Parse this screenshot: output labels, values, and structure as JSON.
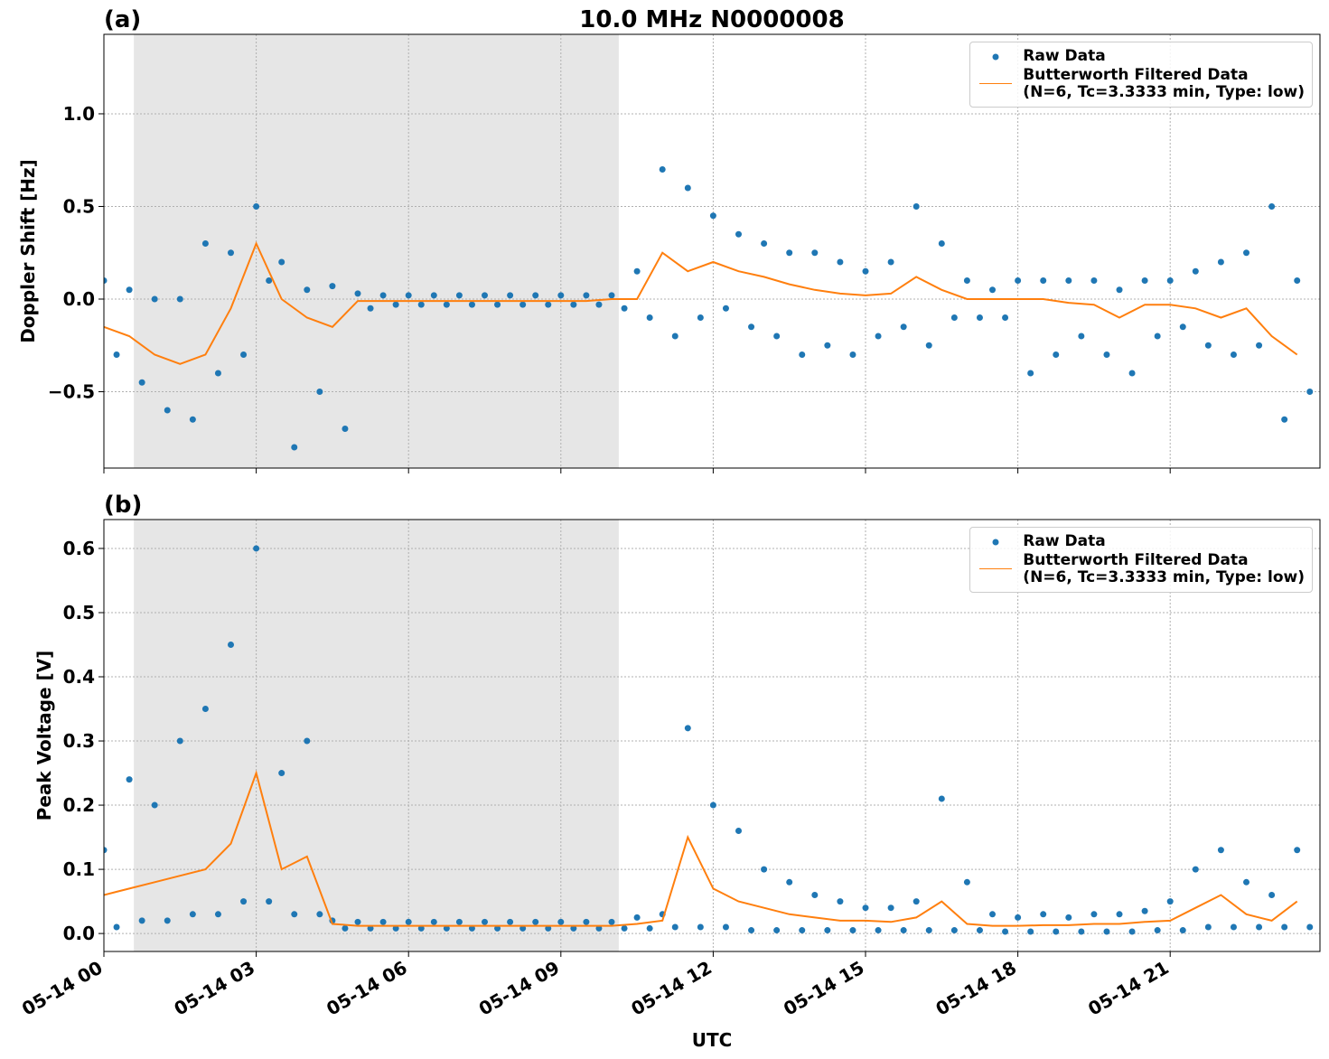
{
  "chart_data": [
    {
      "type": "line",
      "panel_label": "(a)",
      "title": "10.0 MHz N0000008",
      "ylabel": "Doppler Shift [Hz]",
      "ylim": [
        -0.912,
        1.429
      ],
      "yticks": [
        {
          "value": -0.5,
          "label": "−0.5"
        },
        {
          "value": 0,
          "label": "0.0"
        },
        0.5,
        {
          "value": 1,
          "label": "1.0"
        }
      ],
      "grid": true,
      "legend": "upper right",
      "shaded_span": [
        0.59,
        10.14
      ],
      "series": [
        {
          "name": "Raw Data",
          "mode": "markers",
          "color": "#1f77b4",
          "x": [
            0,
            0.25,
            0.5,
            0.75,
            1,
            1.25,
            1.5,
            1.75,
            2,
            2.25,
            2.5,
            2.75,
            3,
            3.25,
            3.5,
            3.75,
            4,
            4.25,
            4.5,
            4.75,
            5,
            5.25,
            5.5,
            5.75,
            6,
            6.25,
            6.5,
            6.75,
            7,
            7.25,
            7.5,
            7.75,
            8,
            8.25,
            8.5,
            8.75,
            9,
            9.25,
            9.5,
            9.75,
            10,
            10.25,
            10.5,
            10.75,
            11,
            11.25,
            11.5,
            11.75,
            12,
            12.25,
            12.5,
            12.75,
            13,
            13.25,
            13.5,
            13.75,
            14,
            14.25,
            14.5,
            14.75,
            15,
            15.25,
            15.5,
            15.75,
            16,
            16.25,
            16.5,
            16.75,
            17,
            17.25,
            17.5,
            17.75,
            18,
            18.25,
            18.5,
            18.75,
            19,
            19.25,
            19.5,
            19.75,
            20,
            20.25,
            20.5,
            20.75,
            21,
            21.25,
            21.5,
            21.75,
            22,
            22.25,
            22.5,
            22.75,
            23,
            23.25,
            23.5,
            23.75
          ],
          "values": [
            0.1,
            -0.3,
            0.05,
            -0.45,
            0.0,
            -0.6,
            0.0,
            -0.65,
            0.3,
            -0.4,
            0.25,
            -0.3,
            0.5,
            0.1,
            0.2,
            -0.8,
            0.05,
            -0.5,
            0.07,
            -0.7,
            0.03,
            -0.05,
            0.02,
            -0.03,
            0.02,
            -0.03,
            0.02,
            -0.03,
            0.02,
            -0.03,
            0.02,
            -0.03,
            0.02,
            -0.03,
            0.02,
            -0.03,
            0.02,
            -0.03,
            0.02,
            -0.03,
            0.02,
            -0.05,
            0.15,
            -0.1,
            0.7,
            -0.2,
            0.6,
            -0.1,
            0.45,
            -0.05,
            0.35,
            -0.15,
            0.3,
            -0.2,
            0.25,
            -0.3,
            0.25,
            -0.25,
            0.2,
            -0.3,
            0.15,
            -0.2,
            0.2,
            -0.15,
            0.5,
            -0.25,
            0.3,
            -0.1,
            0.1,
            -0.1,
            0.05,
            -0.1,
            0.1,
            -0.4,
            0.1,
            -0.3,
            0.1,
            -0.2,
            0.1,
            -0.3,
            0.05,
            -0.4,
            0.1,
            -0.2,
            0.1,
            -0.15,
            0.15,
            -0.25,
            0.2,
            -0.3,
            0.25,
            -0.25,
            0.5,
            -0.65,
            0.1,
            -0.5
          ]
        },
        {
          "name": "Butterworth Filtered Data\n(N=6, Tc=3.3333 min, Type: low)",
          "mode": "line",
          "color": "#ff7f0e",
          "x": [
            0,
            0.5,
            1,
            1.5,
            2,
            2.5,
            3,
            3.5,
            4,
            4.5,
            5,
            5.5,
            6,
            6.5,
            7,
            7.5,
            8,
            8.5,
            9,
            9.5,
            10,
            10.5,
            11,
            11.5,
            12,
            12.5,
            13,
            13.5,
            14,
            14.5,
            15,
            15.5,
            16,
            16.5,
            17,
            17.5,
            18,
            18.5,
            19,
            19.5,
            20,
            20.5,
            21,
            21.5,
            22,
            22.5,
            23,
            23.5
          ],
          "values": [
            -0.15,
            -0.2,
            -0.3,
            -0.35,
            -0.3,
            -0.05,
            0.3,
            0.0,
            -0.1,
            -0.15,
            -0.01,
            -0.01,
            -0.01,
            -0.01,
            -0.01,
            -0.01,
            -0.01,
            -0.01,
            -0.01,
            -0.01,
            0.0,
            0.0,
            0.25,
            0.15,
            0.2,
            0.15,
            0.12,
            0.08,
            0.05,
            0.03,
            0.02,
            0.03,
            0.12,
            0.05,
            0.0,
            0.0,
            0.0,
            0.0,
            -0.02,
            -0.03,
            -0.1,
            -0.03,
            -0.03,
            -0.05,
            -0.1,
            -0.05,
            -0.2,
            -0.3
          ]
        }
      ]
    },
    {
      "type": "line",
      "panel_label": "(b)",
      "ylabel": "Peak Voltage [V]",
      "xlabel": "UTC",
      "xlim": [
        0,
        23.95
      ],
      "xticks": [
        {
          "value": 0,
          "label": "05-14 00"
        },
        {
          "value": 3,
          "label": "05-14 03"
        },
        {
          "value": 6,
          "label": "05-14 06"
        },
        {
          "value": 9,
          "label": "05-14 09"
        },
        {
          "value": 12,
          "label": "05-14 12"
        },
        {
          "value": 15,
          "label": "05-14 15"
        },
        {
          "value": 18,
          "label": "05-14 18"
        },
        {
          "value": 21,
          "label": "05-14 21"
        }
      ],
      "ylim": [
        -0.028,
        0.645
      ],
      "yticks": [
        {
          "value": 0,
          "label": "0.0"
        },
        0.1,
        0.2,
        0.3,
        0.4,
        0.5,
        0.6
      ],
      "grid": true,
      "legend": "upper right",
      "shaded_span": [
        0.59,
        10.14
      ],
      "series": [
        {
          "name": "Raw Data",
          "mode": "markers",
          "color": "#1f77b4",
          "x": [
            0,
            0.25,
            0.5,
            0.75,
            1,
            1.25,
            1.5,
            1.75,
            2,
            2.25,
            2.5,
            2.75,
            3,
            3.25,
            3.5,
            3.75,
            4,
            4.25,
            4.5,
            4.75,
            5,
            5.25,
            5.5,
            5.75,
            6,
            6.25,
            6.5,
            6.75,
            7,
            7.25,
            7.5,
            7.75,
            8,
            8.25,
            8.5,
            8.75,
            9,
            9.25,
            9.5,
            9.75,
            10,
            10.25,
            10.5,
            10.75,
            11,
            11.25,
            11.5,
            11.75,
            12,
            12.25,
            12.5,
            12.75,
            13,
            13.25,
            13.5,
            13.75,
            14,
            14.25,
            14.5,
            14.75,
            15,
            15.25,
            15.5,
            15.75,
            16,
            16.25,
            16.5,
            16.75,
            17,
            17.25,
            17.5,
            17.75,
            18,
            18.25,
            18.5,
            18.75,
            19,
            19.25,
            19.5,
            19.75,
            20,
            20.25,
            20.5,
            20.75,
            21,
            21.25,
            21.5,
            21.75,
            22,
            22.25,
            22.5,
            22.75,
            23,
            23.25,
            23.5,
            23.75
          ],
          "values": [
            0.13,
            0.01,
            0.24,
            0.02,
            0.2,
            0.02,
            0.3,
            0.03,
            0.35,
            0.03,
            0.45,
            0.05,
            0.6,
            0.05,
            0.25,
            0.03,
            0.3,
            0.03,
            0.02,
            0.008,
            0.018,
            0.008,
            0.018,
            0.008,
            0.018,
            0.008,
            0.018,
            0.008,
            0.018,
            0.008,
            0.018,
            0.008,
            0.018,
            0.008,
            0.018,
            0.008,
            0.018,
            0.008,
            0.018,
            0.008,
            0.018,
            0.008,
            0.025,
            0.008,
            0.03,
            0.01,
            0.32,
            0.01,
            0.2,
            0.01,
            0.16,
            0.005,
            0.1,
            0.005,
            0.08,
            0.005,
            0.06,
            0.005,
            0.05,
            0.005,
            0.04,
            0.005,
            0.04,
            0.005,
            0.05,
            0.005,
            0.21,
            0.005,
            0.08,
            0.005,
            0.03,
            0.003,
            0.025,
            0.003,
            0.03,
            0.003,
            0.025,
            0.003,
            0.03,
            0.003,
            0.03,
            0.003,
            0.035,
            0.005,
            0.05,
            0.005,
            0.1,
            0.01,
            0.13,
            0.01,
            0.08,
            0.01,
            0.06,
            0.01,
            0.13,
            0.01
          ]
        },
        {
          "name": "Butterworth Filtered Data\n(N=6, Tc=3.3333 min, Type: low)",
          "mode": "line",
          "color": "#ff7f0e",
          "x": [
            0,
            0.5,
            1,
            1.5,
            2,
            2.5,
            3,
            3.5,
            4,
            4.5,
            5,
            5.5,
            6,
            6.5,
            7,
            7.5,
            8,
            8.5,
            9,
            9.5,
            10,
            10.5,
            11,
            11.5,
            12,
            12.5,
            13,
            13.5,
            14,
            14.5,
            15,
            15.5,
            16,
            16.5,
            17,
            17.5,
            18,
            18.5,
            19,
            19.5,
            20,
            20.5,
            21,
            21.5,
            22,
            22.5,
            23,
            23.5
          ],
          "values": [
            0.06,
            0.07,
            0.08,
            0.09,
            0.1,
            0.14,
            0.25,
            0.1,
            0.12,
            0.015,
            0.012,
            0.012,
            0.012,
            0.012,
            0.012,
            0.012,
            0.012,
            0.012,
            0.012,
            0.012,
            0.012,
            0.015,
            0.02,
            0.15,
            0.07,
            0.05,
            0.04,
            0.03,
            0.025,
            0.02,
            0.02,
            0.018,
            0.025,
            0.05,
            0.015,
            0.012,
            0.012,
            0.013,
            0.013,
            0.015,
            0.015,
            0.018,
            0.02,
            0.04,
            0.06,
            0.03,
            0.02,
            0.05
          ]
        }
      ]
    }
  ]
}
